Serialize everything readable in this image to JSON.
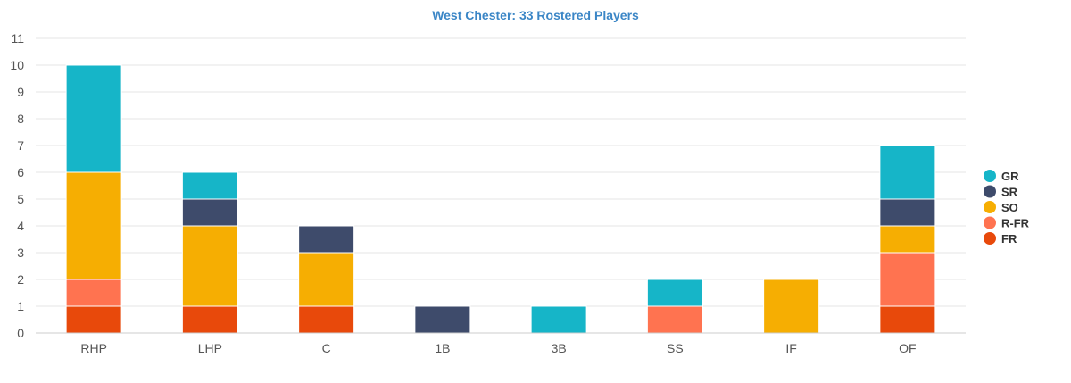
{
  "chart_data": {
    "type": "bar",
    "stacked": true,
    "title": "West Chester: 33 Rostered Players",
    "xlabel": "",
    "ylabel": "",
    "ylim": [
      0,
      11
    ],
    "yticks": [
      0,
      1,
      2,
      3,
      4,
      5,
      6,
      7,
      8,
      9,
      10,
      11
    ],
    "grid": true,
    "legend_position": "right",
    "categories": [
      "RHP",
      "LHP",
      "C",
      "1B",
      "3B",
      "SS",
      "IF",
      "OF"
    ],
    "series": [
      {
        "name": "FR",
        "color": "#e8490b",
        "values": [
          1,
          1,
          1,
          0,
          0,
          0,
          0,
          1
        ]
      },
      {
        "name": "R-FR",
        "color": "#ff7350",
        "values": [
          1,
          0,
          0,
          0,
          0,
          1,
          0,
          2
        ]
      },
      {
        "name": "SO",
        "color": "#f6ae02",
        "values": [
          4,
          3,
          2,
          0,
          0,
          0,
          2,
          1
        ]
      },
      {
        "name": "SR",
        "color": "#3e4b6b",
        "values": [
          0,
          1,
          1,
          1,
          0,
          0,
          0,
          1
        ]
      },
      {
        "name": "GR",
        "color": "#16b5c8",
        "values": [
          4,
          1,
          0,
          0,
          1,
          1,
          0,
          2
        ]
      }
    ],
    "legend_order": [
      "GR",
      "SR",
      "SO",
      "R-FR",
      "FR"
    ]
  }
}
